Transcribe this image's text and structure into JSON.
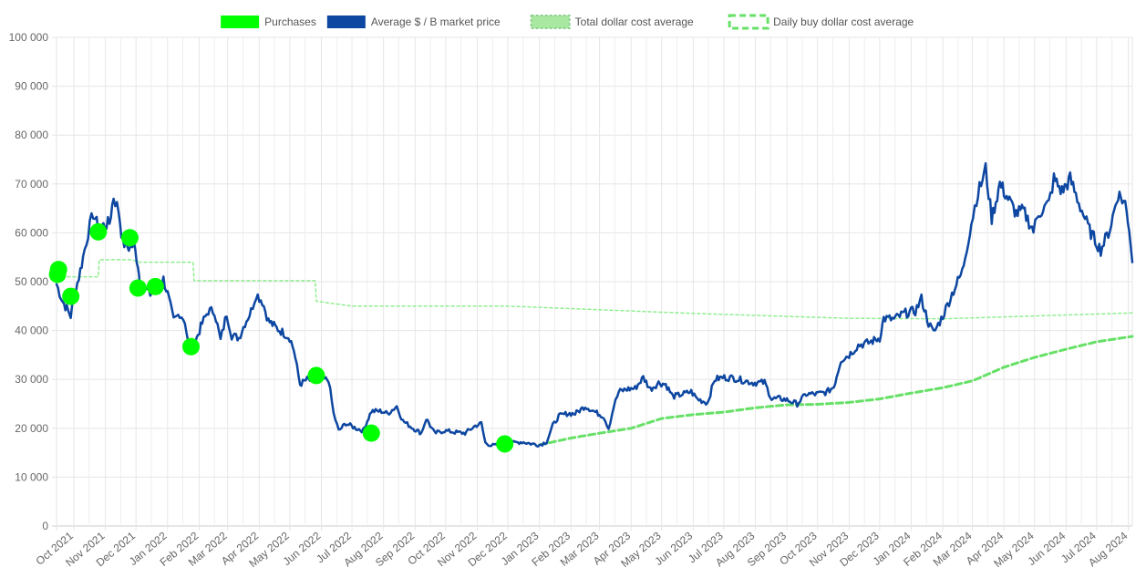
{
  "chart_data": {
    "type": "line",
    "legend": {
      "position": "top",
      "items": [
        {
          "label": "Purchases",
          "color": "#00ff00",
          "style": "filled"
        },
        {
          "label": "Average $ / B market price",
          "color": "#0d47a1",
          "style": "filled"
        },
        {
          "label": "Total dollar cost average",
          "color": "#90ee90",
          "style": "dotted"
        },
        {
          "label": "Daily buy dollar cost average",
          "color": "#66e066",
          "style": "dashed"
        }
      ]
    },
    "y_axis": {
      "min": 0,
      "max": 100000,
      "step": 10000,
      "tick_labels": [
        "0",
        "10 000",
        "20 000",
        "30 000",
        "40 000",
        "50 000",
        "60 000",
        "70 000",
        "80 000",
        "90 000",
        "100 000"
      ]
    },
    "x_axis": {
      "start": "2021-09-14",
      "end": "2024-08-05",
      "tick_labels": [
        {
          "label": "Oct 2021",
          "date": "2021-10-01"
        },
        {
          "label": "Nov 2021",
          "date": "2021-11-01"
        },
        {
          "label": "Dec 2021",
          "date": "2021-12-01"
        },
        {
          "label": "Jan 2022",
          "date": "2022-01-01"
        },
        {
          "label": "Feb 2022",
          "date": "2022-02-01"
        },
        {
          "label": "Mar 2022",
          "date": "2022-03-01"
        },
        {
          "label": "Apr 2022",
          "date": "2022-04-01"
        },
        {
          "label": "May 2022",
          "date": "2022-05-01"
        },
        {
          "label": "Jun 2022",
          "date": "2022-06-01"
        },
        {
          "label": "Jul 2022",
          "date": "2022-07-01"
        },
        {
          "label": "Aug 2022",
          "date": "2022-08-01"
        },
        {
          "label": "Sep 2022",
          "date": "2022-09-01"
        },
        {
          "label": "Oct 2022",
          "date": "2022-10-01"
        },
        {
          "label": "Nov 2022",
          "date": "2022-11-01"
        },
        {
          "label": "Dec 2022",
          "date": "2022-12-01"
        },
        {
          "label": "Jan 2023",
          "date": "2023-01-01"
        },
        {
          "label": "Feb 2023",
          "date": "2023-02-01"
        },
        {
          "label": "Mar 2023",
          "date": "2023-03-01"
        },
        {
          "label": "Apr 2023",
          "date": "2023-04-01"
        },
        {
          "label": "May 2023",
          "date": "2023-05-01"
        },
        {
          "label": "Jun 2023",
          "date": "2023-06-01"
        },
        {
          "label": "Jul 2023",
          "date": "2023-07-01"
        },
        {
          "label": "Aug 2023",
          "date": "2023-08-01"
        },
        {
          "label": "Sep 2023",
          "date": "2023-09-01"
        },
        {
          "label": "Oct 2023",
          "date": "2023-10-01"
        },
        {
          "label": "Nov 2023",
          "date": "2023-11-01"
        },
        {
          "label": "Dec 2023",
          "date": "2023-12-01"
        },
        {
          "label": "Jan 2024",
          "date": "2024-01-01"
        },
        {
          "label": "Feb 2024",
          "date": "2024-02-01"
        },
        {
          "label": "Mar 2024",
          "date": "2024-03-01"
        },
        {
          "label": "Apr 2024",
          "date": "2024-04-01"
        },
        {
          "label": "May 2024",
          "date": "2024-05-01"
        },
        {
          "label": "Jun 2024",
          "date": "2024-06-01"
        },
        {
          "label": "Jul 2024",
          "date": "2024-07-01"
        },
        {
          "label": "Aug 2024",
          "date": "2024-08-01"
        }
      ]
    },
    "grid": true,
    "series": [
      {
        "name": "Average $ / B market price",
        "color": "#0d47a1",
        "points": [
          [
            "2021-09-14",
            49500
          ],
          [
            "2021-09-20",
            46000
          ],
          [
            "2021-09-28",
            43000
          ],
          [
            "2021-10-01",
            47000
          ],
          [
            "2021-10-06",
            51000
          ],
          [
            "2021-10-10",
            55000
          ],
          [
            "2021-10-15",
            60000
          ],
          [
            "2021-10-20",
            64000
          ],
          [
            "2021-10-25",
            61000
          ],
          [
            "2021-10-30",
            61500
          ],
          [
            "2021-11-05",
            62000
          ],
          [
            "2021-11-09",
            67500
          ],
          [
            "2021-11-14",
            64500
          ],
          [
            "2021-11-18",
            58000
          ],
          [
            "2021-11-24",
            57000
          ],
          [
            "2021-11-29",
            57500
          ],
          [
            "2021-12-03",
            53500
          ],
          [
            "2021-12-05",
            49500
          ],
          [
            "2021-12-10",
            48500
          ],
          [
            "2021-12-15",
            47500
          ],
          [
            "2021-12-22",
            49000
          ],
          [
            "2021-12-28",
            50500
          ],
          [
            "2022-01-01",
            47500
          ],
          [
            "2022-01-07",
            42000
          ],
          [
            "2022-01-13",
            43500
          ],
          [
            "2022-01-18",
            42000
          ],
          [
            "2022-01-22",
            36000
          ],
          [
            "2022-01-27",
            37000
          ],
          [
            "2022-02-04",
            41500
          ],
          [
            "2022-02-10",
            44000
          ],
          [
            "2022-02-16",
            44000
          ],
          [
            "2022-02-22",
            38000
          ],
          [
            "2022-02-28",
            43500
          ],
          [
            "2022-03-05",
            39000
          ],
          [
            "2022-03-12",
            38500
          ],
          [
            "2022-03-18",
            41500
          ],
          [
            "2022-03-24",
            44000
          ],
          [
            "2022-03-29",
            47500
          ],
          [
            "2022-04-04",
            46000
          ],
          [
            "2022-04-10",
            42000
          ],
          [
            "2022-04-18",
            40500
          ],
          [
            "2022-04-25",
            39500
          ],
          [
            "2022-05-01",
            38500
          ],
          [
            "2022-05-05",
            36000
          ],
          [
            "2022-05-11",
            29000
          ],
          [
            "2022-05-18",
            30000
          ],
          [
            "2022-05-25",
            29500
          ],
          [
            "2022-06-01",
            30000
          ],
          [
            "2022-06-08",
            30000
          ],
          [
            "2022-06-13",
            23000
          ],
          [
            "2022-06-18",
            19500
          ],
          [
            "2022-06-25",
            21000
          ],
          [
            "2022-07-05",
            20000
          ],
          [
            "2022-07-12",
            19500
          ],
          [
            "2022-07-20",
            23500
          ],
          [
            "2022-07-30",
            23500
          ],
          [
            "2022-08-05",
            23000
          ],
          [
            "2022-08-14",
            24500
          ],
          [
            "2022-08-20",
            21500
          ],
          [
            "2022-08-30",
            20000
          ],
          [
            "2022-09-07",
            19000
          ],
          [
            "2022-09-12",
            22000
          ],
          [
            "2022-09-20",
            19000
          ],
          [
            "2022-09-30",
            19500
          ],
          [
            "2022-10-10",
            19200
          ],
          [
            "2022-10-20",
            19000
          ],
          [
            "2022-10-30",
            20500
          ],
          [
            "2022-11-05",
            21000
          ],
          [
            "2022-11-09",
            17000
          ],
          [
            "2022-11-15",
            16500
          ],
          [
            "2022-11-25",
            16500
          ],
          [
            "2022-12-05",
            17000
          ],
          [
            "2022-12-15",
            17200
          ],
          [
            "2022-12-25",
            16800
          ],
          [
            "2023-01-01",
            16600
          ],
          [
            "2023-01-08",
            17200
          ],
          [
            "2023-01-14",
            20500
          ],
          [
            "2023-01-20",
            22500
          ],
          [
            "2023-01-28",
            23000
          ],
          [
            "2023-02-05",
            23000
          ],
          [
            "2023-02-15",
            24500
          ],
          [
            "2023-02-25",
            23300
          ],
          [
            "2023-03-05",
            22400
          ],
          [
            "2023-03-10",
            20000
          ],
          [
            "2023-03-15",
            24500
          ],
          [
            "2023-03-20",
            27500
          ],
          [
            "2023-03-28",
            28000
          ],
          [
            "2023-04-05",
            28200
          ],
          [
            "2023-04-13",
            30400
          ],
          [
            "2023-04-20",
            28000
          ],
          [
            "2023-04-28",
            29300
          ],
          [
            "2023-05-05",
            29000
          ],
          [
            "2023-05-12",
            26500
          ],
          [
            "2023-05-20",
            26900
          ],
          [
            "2023-05-30",
            27500
          ],
          [
            "2023-06-05",
            26000
          ],
          [
            "2023-06-15",
            25200
          ],
          [
            "2023-06-22",
            30000
          ],
          [
            "2023-06-30",
            30400
          ],
          [
            "2023-07-10",
            30300
          ],
          [
            "2023-07-20",
            29800
          ],
          [
            "2023-07-30",
            29300
          ],
          [
            "2023-08-10",
            29400
          ],
          [
            "2023-08-17",
            26000
          ],
          [
            "2023-08-25",
            26100
          ],
          [
            "2023-09-01",
            25800
          ],
          [
            "2023-09-11",
            25000
          ],
          [
            "2023-09-20",
            27000
          ],
          [
            "2023-09-30",
            27000
          ],
          [
            "2023-10-10",
            27400
          ],
          [
            "2023-10-17",
            28500
          ],
          [
            "2023-10-24",
            34000
          ],
          [
            "2023-11-01",
            35000
          ],
          [
            "2023-11-10",
            37000
          ],
          [
            "2023-11-20",
            37500
          ],
          [
            "2023-12-01",
            38500
          ],
          [
            "2023-12-05",
            42500
          ],
          [
            "2023-12-15",
            42300
          ],
          [
            "2023-12-25",
            43500
          ],
          [
            "2024-01-05",
            44000
          ],
          [
            "2024-01-11",
            46500
          ],
          [
            "2024-01-18",
            41500
          ],
          [
            "2024-01-23",
            39500
          ],
          [
            "2024-02-01",
            43000
          ],
          [
            "2024-02-10",
            47500
          ],
          [
            "2024-02-20",
            52000
          ],
          [
            "2024-02-29",
            62000
          ],
          [
            "2024-03-05",
            67000
          ],
          [
            "2024-03-14",
            73000
          ],
          [
            "2024-03-20",
            63000
          ],
          [
            "2024-03-28",
            70000
          ],
          [
            "2024-04-05",
            67000
          ],
          [
            "2024-04-13",
            64000
          ],
          [
            "2024-04-20",
            64500
          ],
          [
            "2024-04-30",
            60500
          ],
          [
            "2024-05-05",
            64000
          ],
          [
            "2024-05-15",
            66000
          ],
          [
            "2024-05-20",
            71000
          ],
          [
            "2024-05-28",
            68500
          ],
          [
            "2024-06-05",
            71000
          ],
          [
            "2024-06-12",
            67000
          ],
          [
            "2024-06-24",
            60500
          ],
          [
            "2024-07-05",
            56500
          ],
          [
            "2024-07-14",
            60800
          ],
          [
            "2024-07-22",
            68000
          ],
          [
            "2024-07-29",
            66000
          ],
          [
            "2024-08-02",
            61000
          ],
          [
            "2024-08-05",
            54000
          ]
        ]
      },
      {
        "name": "Total dollar cost average",
        "color": "#90ee90",
        "points": [
          [
            "2021-09-14",
            51000
          ],
          [
            "2021-10-25",
            51000
          ],
          [
            "2021-10-26",
            54500
          ],
          [
            "2021-11-26",
            54500
          ],
          [
            "2021-12-05",
            54000
          ],
          [
            "2022-01-26",
            54000
          ],
          [
            "2022-01-27",
            50200
          ],
          [
            "2022-05-26",
            50200
          ],
          [
            "2022-05-27",
            46000
          ],
          [
            "2022-07-01",
            45000
          ],
          [
            "2022-12-01",
            45000
          ],
          [
            "2023-06-01",
            43500
          ],
          [
            "2023-11-01",
            42500
          ],
          [
            "2024-02-01",
            42400
          ],
          [
            "2024-08-05",
            43600
          ]
        ]
      },
      {
        "name": "Daily buy dollar cost average",
        "color": "#66e066",
        "points": [
          [
            "2023-01-01",
            16600
          ],
          [
            "2023-02-01",
            18000
          ],
          [
            "2023-03-01",
            19000
          ],
          [
            "2023-04-01",
            20000
          ],
          [
            "2023-05-01",
            22000
          ],
          [
            "2023-06-01",
            22800
          ],
          [
            "2023-07-01",
            23300
          ],
          [
            "2023-08-01",
            24200
          ],
          [
            "2023-09-01",
            24800
          ],
          [
            "2023-10-01",
            24900
          ],
          [
            "2023-11-01",
            25300
          ],
          [
            "2023-12-01",
            26000
          ],
          [
            "2024-01-01",
            27200
          ],
          [
            "2024-02-01",
            28300
          ],
          [
            "2024-03-01",
            29700
          ],
          [
            "2024-04-01",
            32500
          ],
          [
            "2024-05-01",
            34500
          ],
          [
            "2024-06-01",
            36200
          ],
          [
            "2024-07-01",
            37700
          ],
          [
            "2024-08-05",
            38800
          ]
        ]
      },
      {
        "name": "Purchases",
        "color": "#00ff00",
        "points": [
          [
            "2021-09-16",
            52500
          ],
          [
            "2021-09-15",
            51500
          ],
          [
            "2021-09-28",
            47000
          ],
          [
            "2021-10-25",
            60200
          ],
          [
            "2021-11-25",
            59000
          ],
          [
            "2021-12-03",
            48700
          ],
          [
            "2021-12-20",
            49000
          ],
          [
            "2022-01-24",
            36700
          ],
          [
            "2022-05-27",
            30800
          ],
          [
            "2022-07-20",
            19000
          ],
          [
            "2022-11-28",
            16800
          ]
        ]
      }
    ]
  }
}
